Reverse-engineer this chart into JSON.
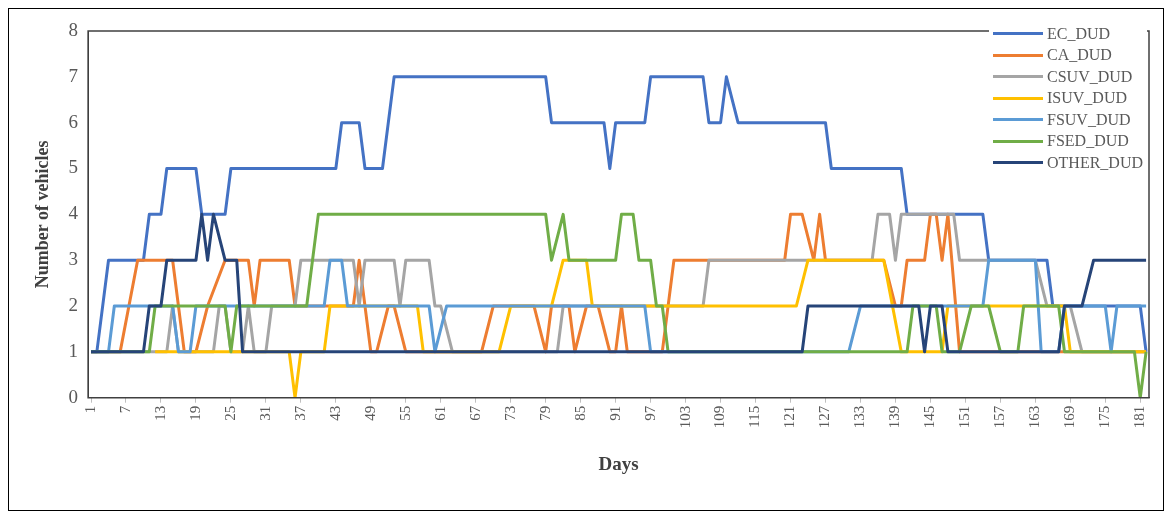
{
  "chart_data": {
    "type": "line",
    "xlabel": "Days",
    "ylabel": "Number of vehicles",
    "xlim": [
      0.5,
      182.5
    ],
    "xticks": [
      1,
      7,
      13,
      19,
      25,
      31,
      37,
      43,
      49,
      55,
      61,
      67,
      73,
      79,
      85,
      91,
      97,
      103,
      109,
      115,
      121,
      127,
      133,
      139,
      145,
      151,
      157,
      163,
      169,
      175,
      181
    ],
    "ylim": [
      0,
      8
    ],
    "yticks": [
      0,
      1,
      2,
      3,
      4,
      5,
      6,
      7,
      8
    ],
    "grid": false,
    "legend": "top right",
    "line_style": "solid",
    "series": [
      {
        "name": "EC_DUD",
        "color": "#4472c4",
        "x": [
          1,
          2,
          4,
          10,
          11,
          13,
          14,
          19,
          20,
          24,
          25,
          43,
          44,
          47,
          48,
          51,
          53,
          79,
          80,
          89,
          90,
          91,
          96,
          97,
          106,
          107,
          109,
          110,
          112,
          127,
          128,
          140,
          141,
          154,
          155,
          165,
          166,
          181,
          182
        ],
        "values": [
          1,
          1,
          3,
          3,
          4,
          4,
          5,
          5,
          4,
          4,
          5,
          5,
          6,
          6,
          5,
          5,
          7,
          7,
          6,
          6,
          5,
          6,
          6,
          7,
          7,
          6,
          6,
          7,
          6,
          6,
          5,
          5,
          4,
          4,
          3,
          3,
          2,
          2,
          1
        ]
      },
      {
        "name": "CA_DUD",
        "color": "#ed7d31",
        "x": [
          1,
          6,
          9,
          15,
          17,
          19,
          21,
          24,
          28,
          29,
          30,
          35,
          36,
          46,
          47,
          49,
          50,
          52,
          53,
          55,
          68,
          70,
          77,
          79,
          80,
          83,
          84,
          86,
          88,
          90,
          91,
          92,
          93,
          99,
          101,
          120,
          121,
          123,
          125,
          126,
          127,
          137,
          139,
          140,
          141,
          144,
          145,
          146,
          147,
          148,
          150,
          182
        ],
        "values": [
          1,
          1,
          3,
          3,
          1,
          1,
          2,
          3,
          3,
          2,
          3,
          3,
          2,
          2,
          3,
          1,
          1,
          2,
          2,
          1,
          1,
          2,
          2,
          1,
          2,
          2,
          1,
          2,
          2,
          1,
          1,
          2,
          1,
          1,
          3,
          3,
          4,
          4,
          3,
          4,
          3,
          3,
          2,
          2,
          3,
          3,
          4,
          4,
          3,
          4,
          1,
          1
        ]
      },
      {
        "name": "CSUV_DUD",
        "color": "#a5a5a5",
        "x": [
          1,
          14,
          15,
          16,
          22,
          23,
          24,
          25,
          27,
          28,
          29,
          31,
          32,
          36,
          37,
          46,
          47,
          48,
          53,
          54,
          55,
          59,
          60,
          61,
          63,
          81,
          82,
          106,
          107,
          135,
          136,
          138,
          139,
          140,
          149,
          150,
          163,
          165,
          169,
          171,
          182
        ],
        "values": [
          1,
          1,
          2,
          1,
          1,
          2,
          2,
          1,
          1,
          2,
          1,
          1,
          2,
          2,
          3,
          3,
          2,
          3,
          3,
          2,
          3,
          3,
          2,
          2,
          1,
          1,
          2,
          2,
          3,
          3,
          4,
          4,
          3,
          4,
          4,
          3,
          3,
          2,
          2,
          1,
          1
        ]
      },
      {
        "name": "ISUV_DUD",
        "color": "#ffc000",
        "x": [
          12,
          35,
          36,
          37,
          41,
          42,
          57,
          58,
          71,
          73,
          80,
          82,
          86,
          87,
          122,
          124,
          137,
          140,
          147,
          148,
          168,
          169,
          182
        ],
        "values": [
          1,
          1,
          0,
          1,
          1,
          2,
          2,
          1,
          1,
          2,
          2,
          3,
          3,
          2,
          2,
          3,
          3,
          1,
          1,
          2,
          2,
          1,
          1
        ]
      },
      {
        "name": "FSUV_DUD",
        "color": "#5b9bd5",
        "x": [
          1,
          4,
          5,
          15,
          16,
          18,
          19,
          41,
          42,
          44,
          45,
          59,
          60,
          62,
          96,
          97,
          131,
          133,
          154,
          155,
          163,
          164,
          167,
          168,
          175,
          176,
          177,
          182
        ],
        "values": [
          1,
          1,
          2,
          2,
          1,
          1,
          2,
          2,
          3,
          3,
          2,
          2,
          1,
          2,
          2,
          1,
          1,
          2,
          2,
          3,
          3,
          1,
          1,
          2,
          2,
          1,
          2,
          2
        ]
      },
      {
        "name": "FSED_DUD",
        "color": "#70ad47",
        "x": [
          1,
          11,
          12,
          24,
          25,
          26,
          38,
          40,
          79,
          80,
          82,
          83,
          91,
          92,
          94,
          95,
          97,
          98,
          99,
          100,
          141,
          142,
          146,
          147,
          150,
          152,
          155,
          157,
          160,
          161,
          167,
          168,
          180,
          181,
          182
        ],
        "values": [
          1,
          1,
          2,
          2,
          1,
          2,
          2,
          4,
          4,
          3,
          4,
          3,
          3,
          4,
          4,
          3,
          3,
          2,
          2,
          1,
          1,
          2,
          2,
          1,
          1,
          2,
          2,
          1,
          1,
          2,
          2,
          1,
          1,
          0,
          1
        ]
      },
      {
        "name": "OTHER_DUD",
        "color": "#264478",
        "x": [
          1,
          10,
          11,
          13,
          14,
          19,
          20,
          21,
          22,
          24,
          26,
          27,
          123,
          124,
          143,
          144,
          145,
          147,
          148,
          167,
          168,
          171,
          173,
          182
        ],
        "values": [
          1,
          1,
          2,
          2,
          3,
          3,
          4,
          3,
          4,
          3,
          3,
          1,
          1,
          2,
          2,
          1,
          2,
          2,
          1,
          1,
          2,
          2,
          3,
          3
        ]
      }
    ]
  }
}
